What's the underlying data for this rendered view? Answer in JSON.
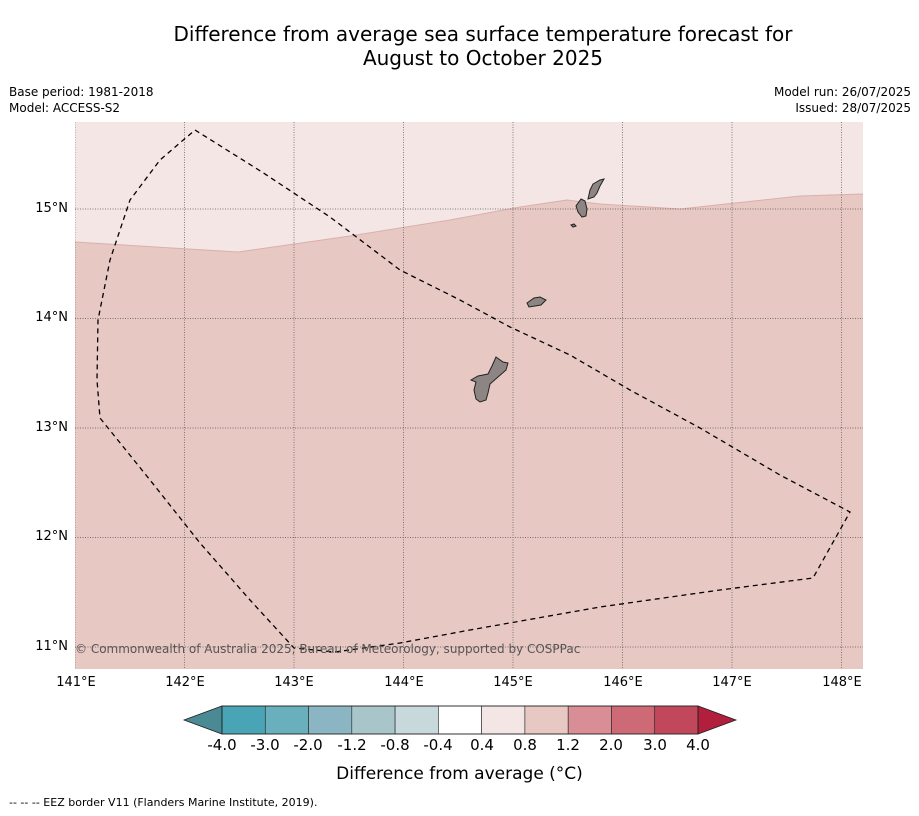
{
  "title_line1": "Difference from average sea surface temperature forecast for",
  "title_line2": "August to October 2025",
  "left_meta": {
    "line1": "Base period: 1981-2018",
    "line2": "Model: ACCESS-S2"
  },
  "right_meta": {
    "line1": "Model run: 26/07/2025",
    "line2": "Issued: 28/07/2025"
  },
  "map": {
    "lat_labels": [
      "15°N",
      "14°N",
      "13°N",
      "12°N",
      "11°N"
    ],
    "lon_labels": [
      "141°E",
      "142°E",
      "143°E",
      "144°E",
      "145°E",
      "146°E",
      "147°E",
      "148°E"
    ],
    "copyright": "© Commonwealth of Australia 2025, Bureau of Meteorology, supported by COSPPac",
    "colors": {
      "light_anomaly": "#f4e6e5",
      "main_anomaly": "#e8c8c3",
      "land": "#8c8584"
    }
  },
  "colorbar": {
    "tick_labels": [
      "-4.0",
      "-3.0",
      "-2.0",
      "-1.2",
      "-0.8",
      "-0.4",
      "0.4",
      "0.8",
      "1.2",
      "2.0",
      "3.0",
      "4.0"
    ],
    "colors": [
      "#4a8a94",
      "#49a4b5",
      "#6aafbe",
      "#8bb5c2",
      "#a8c5c9",
      "#c8d9dc",
      "#ffffff",
      "#f4e6e5",
      "#e8c8c3",
      "#d98e96",
      "#cd6a75",
      "#c1485a",
      "#b21f3c"
    ],
    "title": "Difference from average (°C)"
  },
  "footnote": "-- -- -- EEZ border V11 (Flanders Marine Institute, 2019)."
}
